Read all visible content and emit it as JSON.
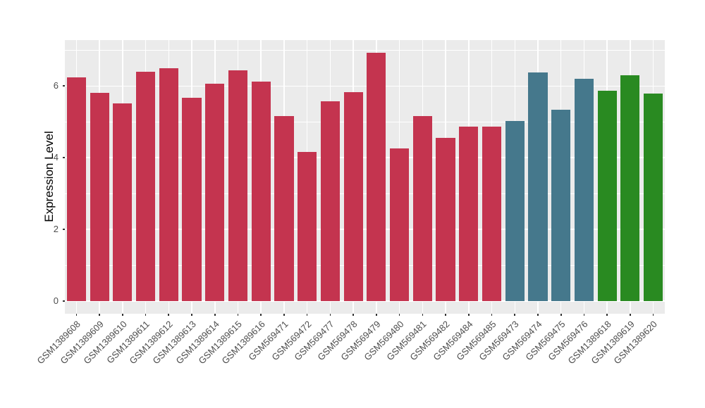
{
  "chart_data": {
    "type": "bar",
    "title": "",
    "xlabel": "",
    "ylabel": "Expression Level",
    "categories": [
      "GSM1389608",
      "GSM1389609",
      "GSM1389610",
      "GSM1389611",
      "GSM1389612",
      "GSM1389613",
      "GSM1389614",
      "GSM1389615",
      "GSM1389616",
      "GSM569471",
      "GSM569472",
      "GSM569477",
      "GSM569478",
      "GSM569479",
      "GSM569480",
      "GSM569481",
      "GSM569482",
      "GSM569484",
      "GSM569485",
      "GSM569473",
      "GSM569474",
      "GSM569475",
      "GSM569476",
      "GSM1389618",
      "GSM1389619",
      "GSM1389620"
    ],
    "values": [
      6.24,
      5.8,
      5.52,
      6.4,
      6.49,
      5.67,
      6.06,
      6.44,
      6.13,
      5.17,
      4.17,
      5.58,
      5.82,
      6.93,
      4.25,
      5.17,
      4.56,
      4.86,
      4.86,
      5.02,
      6.37,
      5.33,
      6.2,
      5.87,
      6.29,
      5.79
    ],
    "bar_colors": [
      "#C4344F",
      "#C4344F",
      "#C4344F",
      "#C4344F",
      "#C4344F",
      "#C4344F",
      "#C4344F",
      "#C4344F",
      "#C4344F",
      "#C4344F",
      "#C4344F",
      "#C4344F",
      "#C4344F",
      "#C4344F",
      "#C4344F",
      "#C4344F",
      "#C4344F",
      "#C4344F",
      "#C4344F",
      "#45788C",
      "#45788C",
      "#45788C",
      "#45788C",
      "#298A21",
      "#298A21",
      "#298A21"
    ],
    "color_groups": [
      {
        "color": "#C4344F",
        "count": 19
      },
      {
        "color": "#45788C",
        "count": 4
      },
      {
        "color": "#298A21",
        "count": 3
      }
    ],
    "ylim": [
      -0.35,
      7.28
    ],
    "yticks": [
      0,
      2,
      4,
      6
    ],
    "ytick_labels": [
      "0",
      "2",
      "4",
      "6"
    ],
    "minor_yticks": [
      1,
      3,
      5,
      7
    ],
    "grid": "on",
    "legend": "none",
    "panel_bg": "#EBEBEB",
    "grid_color": "#FFFFFF",
    "tick_label_color": "#4D4D4D",
    "tick_mark_color": "#333333",
    "axis_title_color": "#000000",
    "background": "#FFFFFF"
  }
}
